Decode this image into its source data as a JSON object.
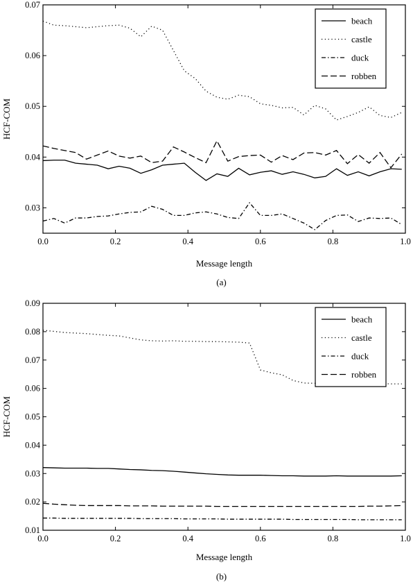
{
  "chart_data": [
    {
      "type": "line",
      "caption": "(a)",
      "xlabel": "Message length",
      "ylabel": "HCF-COM",
      "xlim": [
        0.0,
        1.0
      ],
      "ylim": [
        0.025,
        0.07
      ],
      "xticks": [
        "0.0",
        "0.2",
        "0.4",
        "0.6",
        "0.8",
        "1.0"
      ],
      "yticks": [
        "0.03",
        "0.04",
        "0.05",
        "0.06",
        "0.07"
      ],
      "legend_position": "top-right",
      "x": [
        0.0,
        0.03,
        0.06,
        0.09,
        0.12,
        0.15,
        0.18,
        0.21,
        0.24,
        0.27,
        0.3,
        0.33,
        0.36,
        0.39,
        0.42,
        0.45,
        0.48,
        0.51,
        0.54,
        0.57,
        0.6,
        0.63,
        0.66,
        0.69,
        0.72,
        0.75,
        0.78,
        0.81,
        0.84,
        0.87,
        0.9,
        0.93,
        0.96,
        0.99
      ],
      "series": [
        {
          "name": "beach",
          "dash": "solid",
          "values": [
            0.0393,
            0.0394,
            0.0394,
            0.0388,
            0.0386,
            0.0384,
            0.0377,
            0.0382,
            0.0378,
            0.0368,
            0.0375,
            0.0384,
            0.0386,
            0.0388,
            0.037,
            0.0354,
            0.0367,
            0.0362,
            0.0378,
            0.0365,
            0.037,
            0.0373,
            0.0366,
            0.0371,
            0.0366,
            0.0359,
            0.0362,
            0.0377,
            0.0364,
            0.0371,
            0.0363,
            0.0371,
            0.0377,
            0.0376
          ]
        },
        {
          "name": "castle",
          "dash": "dotted",
          "values": [
            0.0668,
            0.066,
            0.0659,
            0.0657,
            0.0655,
            0.0657,
            0.0659,
            0.066,
            0.0654,
            0.0637,
            0.0658,
            0.065,
            0.061,
            0.057,
            0.0555,
            0.053,
            0.0518,
            0.0514,
            0.0522,
            0.0519,
            0.0505,
            0.0502,
            0.0497,
            0.0498,
            0.0483,
            0.0502,
            0.0495,
            0.0473,
            0.048,
            0.0488,
            0.0499,
            0.0482,
            0.0478,
            0.0488
          ]
        },
        {
          "name": "duck",
          "dash": "dashdot",
          "values": [
            0.0274,
            0.0279,
            0.027,
            0.028,
            0.028,
            0.0283,
            0.0284,
            0.0288,
            0.0291,
            0.0292,
            0.0303,
            0.0297,
            0.0285,
            0.0285,
            0.029,
            0.0292,
            0.0288,
            0.0281,
            0.0279,
            0.031,
            0.0285,
            0.0285,
            0.0288,
            0.0279,
            0.027,
            0.0257,
            0.0275,
            0.0285,
            0.0286,
            0.0273,
            0.028,
            0.0279,
            0.028,
            0.0267
          ]
        },
        {
          "name": "robben",
          "dash": "dashed",
          "values": [
            0.0422,
            0.0417,
            0.0413,
            0.0409,
            0.0396,
            0.0404,
            0.0412,
            0.0402,
            0.0398,
            0.0402,
            0.0389,
            0.0392,
            0.042,
            0.041,
            0.0399,
            0.0389,
            0.0432,
            0.0392,
            0.0401,
            0.0403,
            0.0404,
            0.039,
            0.0403,
            0.0395,
            0.0408,
            0.0409,
            0.0404,
            0.0413,
            0.0387,
            0.0405,
            0.0388,
            0.0409,
            0.0379,
            0.0406
          ]
        }
      ]
    },
    {
      "type": "line",
      "caption": "(b)",
      "xlabel": "Message length",
      "ylabel": "HCF-COM",
      "xlim": [
        0.0,
        1.0
      ],
      "ylim": [
        0.01,
        0.09
      ],
      "xticks": [
        "0.0",
        "0.2",
        "0.4",
        "0.6",
        "0.8",
        "1.0"
      ],
      "yticks": [
        "0.01",
        "0.02",
        "0.03",
        "0.04",
        "0.05",
        "0.06",
        "0.07",
        "0.08",
        "0.09"
      ],
      "legend_position": "top-right",
      "x": [
        0.0,
        0.03,
        0.06,
        0.09,
        0.12,
        0.15,
        0.18,
        0.21,
        0.24,
        0.27,
        0.3,
        0.33,
        0.36,
        0.39,
        0.42,
        0.45,
        0.48,
        0.51,
        0.54,
        0.57,
        0.6,
        0.63,
        0.66,
        0.69,
        0.72,
        0.75,
        0.78,
        0.81,
        0.84,
        0.87,
        0.9,
        0.93,
        0.96,
        0.99
      ],
      "series": [
        {
          "name": "beach",
          "dash": "solid",
          "values": [
            0.0321,
            0.032,
            0.0319,
            0.0319,
            0.0319,
            0.0318,
            0.0318,
            0.0316,
            0.0314,
            0.0313,
            0.0311,
            0.031,
            0.0308,
            0.0305,
            0.0302,
            0.0299,
            0.0297,
            0.0295,
            0.0294,
            0.0294,
            0.0294,
            0.0293,
            0.0292,
            0.0292,
            0.0291,
            0.0291,
            0.0291,
            0.0292,
            0.0291,
            0.0291,
            0.0291,
            0.0291,
            0.0291,
            0.0292
          ]
        },
        {
          "name": "castle",
          "dash": "dotted",
          "values": [
            0.0805,
            0.0801,
            0.0797,
            0.0795,
            0.0793,
            0.079,
            0.0787,
            0.0785,
            0.0778,
            0.0771,
            0.0768,
            0.0767,
            0.0768,
            0.0766,
            0.0766,
            0.0765,
            0.0765,
            0.0764,
            0.0763,
            0.076,
            0.0665,
            0.0655,
            0.0648,
            0.0628,
            0.0619,
            0.0618,
            0.0618,
            0.0618,
            0.0618,
            0.0617,
            0.0617,
            0.0617,
            0.0616,
            0.0616
          ]
        },
        {
          "name": "duck",
          "dash": "dashdot",
          "values": [
            0.0143,
            0.0143,
            0.0142,
            0.0142,
            0.0142,
            0.0142,
            0.0142,
            0.0142,
            0.0142,
            0.0141,
            0.0141,
            0.0141,
            0.0141,
            0.014,
            0.014,
            0.014,
            0.014,
            0.0139,
            0.0139,
            0.0139,
            0.0139,
            0.0139,
            0.0139,
            0.0138,
            0.0138,
            0.0138,
            0.0138,
            0.0138,
            0.0138,
            0.0137,
            0.0137,
            0.0137,
            0.0137,
            0.0137
          ]
        },
        {
          "name": "robben",
          "dash": "dashed",
          "values": [
            0.0195,
            0.0192,
            0.019,
            0.0188,
            0.0187,
            0.0187,
            0.0187,
            0.0187,
            0.0186,
            0.0186,
            0.0186,
            0.0185,
            0.0185,
            0.0185,
            0.0185,
            0.0185,
            0.0184,
            0.0184,
            0.0184,
            0.0184,
            0.0184,
            0.0184,
            0.0184,
            0.0184,
            0.0184,
            0.0184,
            0.0184,
            0.0184,
            0.0184,
            0.0184,
            0.0185,
            0.0185,
            0.0186,
            0.0187
          ]
        }
      ]
    }
  ]
}
